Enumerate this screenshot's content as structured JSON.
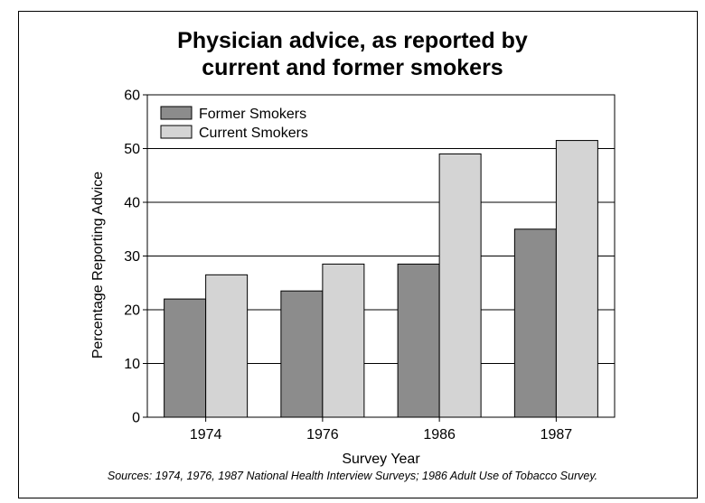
{
  "chart_data": {
    "type": "bar",
    "title_line1": "Physician advice, as reported by",
    "title_line2": "current and former smokers",
    "xlabel": "Survey Year",
    "ylabel": "Percentage Reporting Advice",
    "ylim": [
      0,
      60
    ],
    "yticks": [
      "0",
      "10",
      "20",
      "30",
      "40",
      "50",
      "60"
    ],
    "categories": [
      "1974",
      "1976",
      "1986",
      "1987"
    ],
    "series": [
      {
        "name": "Former Smokers",
        "color": "#8c8c8c",
        "values": [
          22,
          23.5,
          28.5,
          35
        ]
      },
      {
        "name": "Current Smokers",
        "color": "#d4d4d4",
        "values": [
          26.5,
          28.5,
          49,
          51.5
        ]
      }
    ],
    "grid": true,
    "legend_position": "top-left",
    "source": "Sources:  1974, 1976, 1987 National Health Interview Surveys; 1986 Adult Use of Tobacco Survey."
  }
}
